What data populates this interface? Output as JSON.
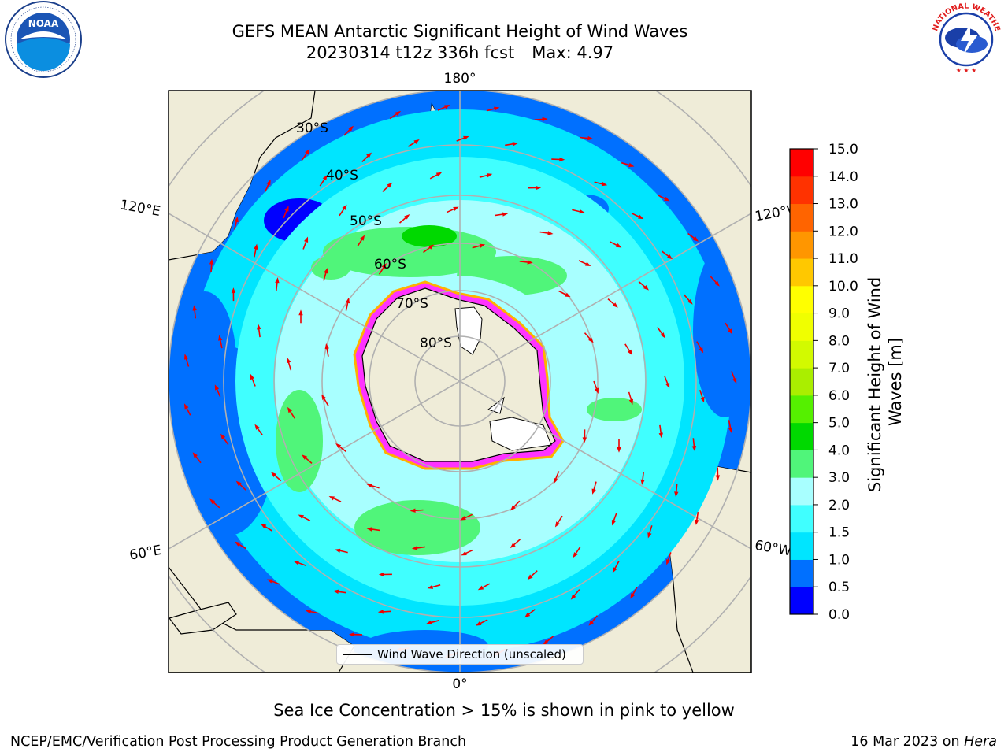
{
  "title": {
    "line1": "GEFS MEAN Antarctic Significant Height of Wind Waves",
    "run": "20230314 t12z 336h fcst",
    "max": "Max: 4.97"
  },
  "logos": {
    "noaa": "NOAA",
    "nws": "NATIONAL WEATHER SERVICE"
  },
  "map": {
    "projection": "south-polar-stereographic",
    "longitude_labels": {
      "top": "180°",
      "bottom": "0°",
      "upper_left": "120°E",
      "upper_right": "120°W",
      "lower_left": "60°E",
      "lower_right": "60°W"
    },
    "latitude_labels": [
      "30°S",
      "40°S",
      "50°S",
      "60°S",
      "70°S",
      "80°S"
    ],
    "legend": "Wind Wave Direction (unscaled)",
    "colors": {
      "land": "#efecd8",
      "ice_sheet": "#ffffff",
      "sea_ice_edge": [
        "#ff33ff",
        "#ffb000",
        "#ffff00"
      ],
      "arrow": "#ee0000",
      "grid": "#b0b0b0"
    }
  },
  "colorbar": {
    "label": "Significant Height of Wind Waves [m]",
    "ticks": [
      "0.0",
      "0.5",
      "1.0",
      "1.5",
      "2.0",
      "3.0",
      "4.0",
      "5.0",
      "6.0",
      "7.0",
      "8.0",
      "9.0",
      "10.0",
      "11.0",
      "12.0",
      "13.0",
      "14.0",
      "15.0"
    ],
    "colors": [
      "#0000ff",
      "#0070ff",
      "#00e5ff",
      "#40ffff",
      "#a8ffff",
      "#50f57a",
      "#00d900",
      "#55f000",
      "#aaee00",
      "#d2fa00",
      "#f0ff00",
      "#ffff00",
      "#ffc800",
      "#ff9600",
      "#ff6400",
      "#ff3200",
      "#ff0000"
    ]
  },
  "footer": {
    "sea_ice_note": "Sea Ice Concentration > 15% is shown in pink to yellow",
    "credit": "NCEP/EMC/Verification Post Processing Product Generation Branch",
    "date": "16 Mar 2023 on",
    "machine": "Hera"
  }
}
